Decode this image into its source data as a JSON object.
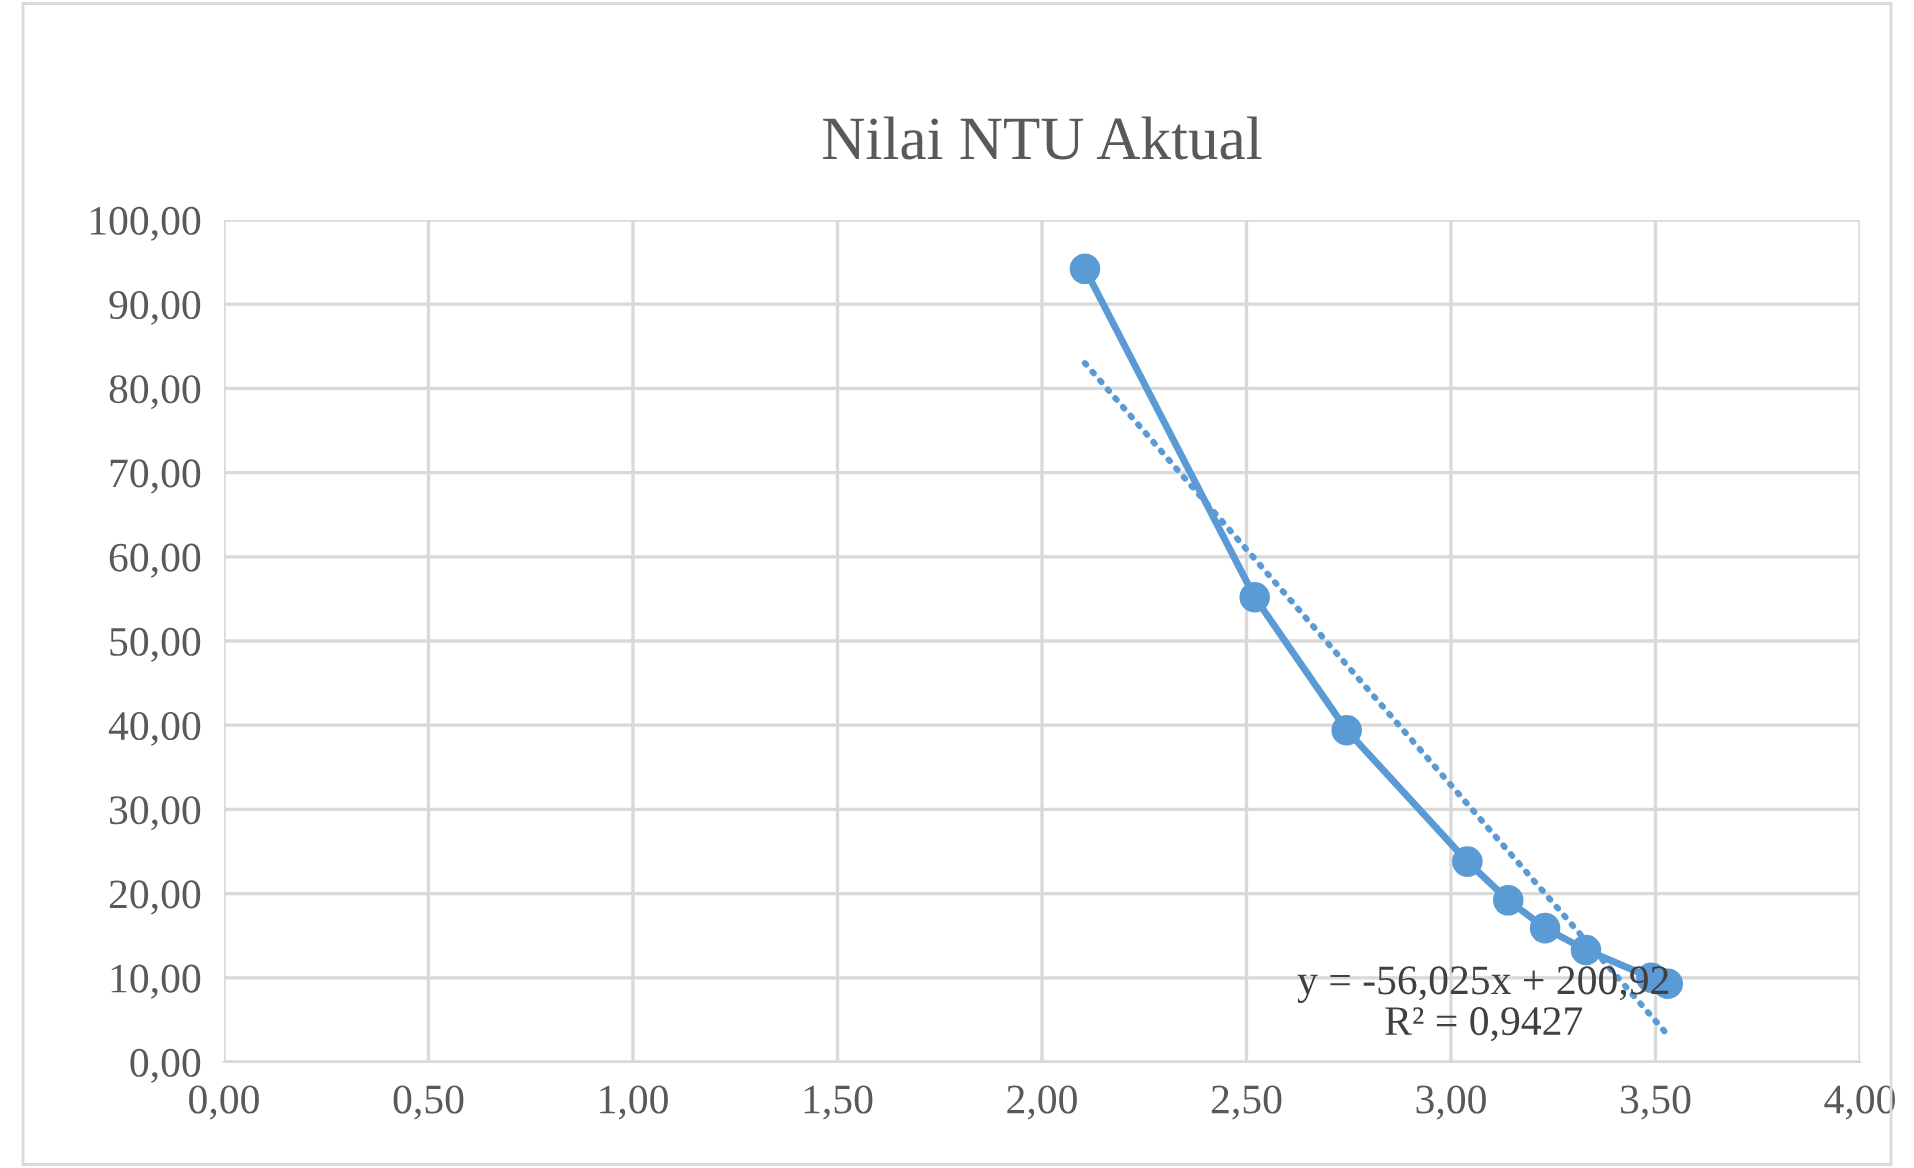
{
  "chart_data": {
    "type": "line",
    "title": "Nilai NTU Aktual",
    "xlim": [
      0,
      4
    ],
    "xticks": [
      {
        "value": 0,
        "label": "0,00"
      },
      {
        "value": 0.5,
        "label": "0,50"
      },
      {
        "value": 1,
        "label": "1,00"
      },
      {
        "value": 1.5,
        "label": "1,50"
      },
      {
        "value": 2,
        "label": "2,00"
      },
      {
        "value": 2.5,
        "label": "2,50"
      },
      {
        "value": 3,
        "label": "3,00"
      },
      {
        "value": 3.5,
        "label": "3,50"
      },
      {
        "value": 4,
        "label": "4,00"
      }
    ],
    "ylim": [
      0,
      100
    ],
    "yticks": [
      {
        "value": 0,
        "label": "0,00"
      },
      {
        "value": 10,
        "label": "10,00"
      },
      {
        "value": 20,
        "label": "20,00"
      },
      {
        "value": 30,
        "label": "30,00"
      },
      {
        "value": 40,
        "label": "40,00"
      },
      {
        "value": 50,
        "label": "50,00"
      },
      {
        "value": 60,
        "label": "60,00"
      },
      {
        "value": 70,
        "label": "70,00"
      },
      {
        "value": 80,
        "label": "80,00"
      },
      {
        "value": 90,
        "label": "90,00"
      },
      {
        "value": 100,
        "label": "100,00"
      }
    ],
    "grid": true,
    "series": [
      {
        "color": "#5b9bd5",
        "marker": "circle",
        "line_style": "solid",
        "x": [
          2.105,
          2.52,
          2.745,
          3.04,
          3.14,
          3.23,
          3.33,
          3.49,
          3.53
        ],
        "values": [
          94.2,
          55.2,
          39.4,
          23.8,
          19.2,
          15.9,
          13.3,
          10.0,
          9.3
        ]
      },
      {
        "type": "line",
        "color": "#5b9bd5",
        "marker": "none",
        "line_style": "dotted",
        "x": [
          2.105,
          3.53
        ],
        "values": [
          83.0,
          3.2
        ]
      }
    ],
    "annotations": [
      "y = -56,025x + 200,92\nR² = 0,9427"
    ]
  }
}
